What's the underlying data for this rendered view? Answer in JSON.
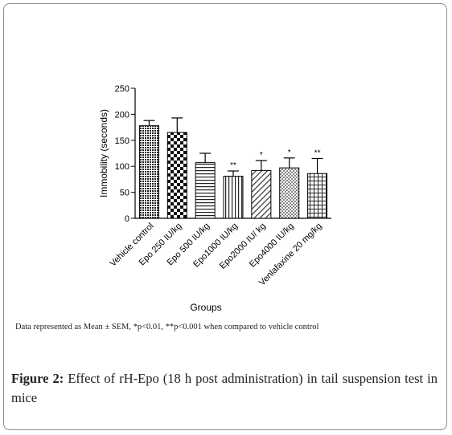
{
  "chart_data": {
    "type": "bar",
    "categories": [
      "Vehicle control",
      "Epo 250 IU/kg",
      "Epo 500 IU/kg",
      "Epo1000 IU/kg",
      "Epo2000 IU/ kg",
      "Epo4000 IU/kg",
      "Venlafaxine 20 mg/kg"
    ],
    "values": [
      178,
      165,
      107,
      81,
      92,
      97,
      86
    ],
    "errors": [
      10,
      28,
      18,
      10,
      19,
      19,
      29
    ],
    "significance": [
      "",
      "",
      "",
      "**",
      "*",
      "*",
      "**"
    ],
    "xlabel": "Groups",
    "ylabel": "Immobility (seconds)",
    "ylim": [
      0,
      250
    ],
    "yticks": [
      0,
      50,
      100,
      150,
      200,
      250
    ],
    "grid": false,
    "legend": "none"
  },
  "footnote": "Data represented as Mean ± SEM, *p<0.01, **p<0.001 when compared to vehicle control",
  "caption": {
    "label": "Figure 2:",
    "text": " Effect of rH-Epo (18 h post administration) in tail suspension test in mice"
  }
}
